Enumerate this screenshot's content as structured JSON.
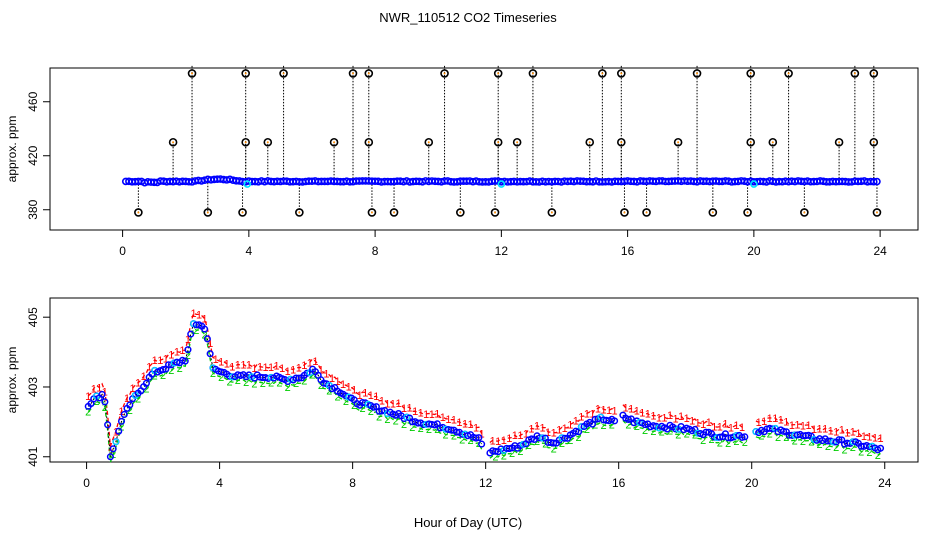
{
  "title": "NWR_110512  CO2 Timeseries",
  "xlabel": "Hour of Day (UTC)",
  "colors": {
    "main": "#0000ff",
    "outline": "#000000",
    "alt": "#00e5ff",
    "orange": "#ff8c00",
    "red": "#ff0000",
    "green": "#00cc00",
    "grid": "#000000"
  },
  "chart_data": [
    {
      "type": "scatter",
      "name": "top-panel",
      "ylabel": "approx. ppm",
      "xlim": [
        -2.3,
        25.2
      ],
      "ylim": [
        365,
        485
      ],
      "xticks": [
        0,
        4,
        8,
        12,
        16,
        20,
        24
      ],
      "yticks": [
        380,
        420,
        460
      ],
      "series": [
        {
          "name": "co2",
          "note": "near-continuous points ~400-402 ppm from 0.1 to 23.9 h",
          "start": 0.1,
          "end": 23.9,
          "step": 0.1,
          "baseline": 401,
          "bump": [
            [
              3.2,
              403
            ],
            [
              1.0,
              400.5
            ]
          ]
        },
        {
          "name": "spikes_high",
          "values": [
            [
              2.2,
              481
            ],
            [
              3.9,
              481
            ],
            [
              5.1,
              481
            ],
            [
              7.3,
              481
            ],
            [
              7.8,
              481
            ],
            [
              10.2,
              481
            ],
            [
              11.9,
              481
            ],
            [
              13.0,
              481
            ],
            [
              15.2,
              481
            ],
            [
              15.8,
              481
            ],
            [
              18.2,
              481
            ],
            [
              19.9,
              481
            ],
            [
              21.1,
              481
            ],
            [
              23.2,
              481
            ],
            [
              23.8,
              481
            ]
          ]
        },
        {
          "name": "spikes_mid",
          "values": [
            [
              1.6,
              430
            ],
            [
              3.9,
              430
            ],
            [
              4.6,
              430
            ],
            [
              6.7,
              430
            ],
            [
              7.8,
              430
            ],
            [
              9.7,
              430
            ],
            [
              11.9,
              430
            ],
            [
              12.5,
              430
            ],
            [
              14.8,
              430
            ],
            [
              15.8,
              430
            ],
            [
              17.6,
              430
            ],
            [
              19.9,
              430
            ],
            [
              20.6,
              430
            ],
            [
              22.7,
              430
            ],
            [
              23.8,
              430
            ]
          ]
        },
        {
          "name": "spikes_low",
          "values": [
            [
              0.5,
              378
            ],
            [
              2.7,
              378
            ],
            [
              3.8,
              378
            ],
            [
              5.6,
              378
            ],
            [
              7.9,
              378
            ],
            [
              8.6,
              378
            ],
            [
              10.7,
              378
            ],
            [
              11.8,
              378
            ],
            [
              13.6,
              378
            ],
            [
              15.9,
              378
            ],
            [
              16.6,
              378
            ],
            [
              18.7,
              378
            ],
            [
              19.8,
              378
            ],
            [
              21.6,
              378
            ],
            [
              23.9,
              378
            ]
          ]
        }
      ]
    },
    {
      "type": "scatter",
      "name": "bottom-panel",
      "ylabel": "approx. ppm",
      "xlim": [
        -1.1,
        25.0
      ],
      "ylim": [
        400.85,
        405.55
      ],
      "xticks": [
        0,
        4,
        8,
        12,
        16,
        20,
        24
      ],
      "yticks": [
        401,
        403,
        405
      ],
      "series": [
        {
          "name": "co2_mean",
          "anchors": [
            [
              0.05,
              402.5
            ],
            [
              0.3,
              402.7
            ],
            [
              0.5,
              402.8
            ],
            [
              0.6,
              402.4
            ],
            [
              0.7,
              401.0
            ],
            [
              0.85,
              401.3
            ],
            [
              1.0,
              401.9
            ],
            [
              1.3,
              402.5
            ],
            [
              1.6,
              402.9
            ],
            [
              2.0,
              403.4
            ],
            [
              2.5,
              403.6
            ],
            [
              3.0,
              403.8
            ],
            [
              3.2,
              404.8
            ],
            [
              3.4,
              404.8
            ],
            [
              3.6,
              404.6
            ],
            [
              3.8,
              403.5
            ],
            [
              4.5,
              403.3
            ],
            [
              5.5,
              403.3
            ],
            [
              6.0,
              403.2
            ],
            [
              6.5,
              403.3
            ],
            [
              6.8,
              403.5
            ],
            [
              7.2,
              403.1
            ],
            [
              7.6,
              402.9
            ],
            [
              8.0,
              402.6
            ],
            [
              9.0,
              402.3
            ],
            [
              10.0,
              402.0
            ],
            [
              11.0,
              401.8
            ],
            [
              11.8,
              401.5
            ],
            [
              12.0,
              401.1
            ],
            [
              12.5,
              401.2
            ],
            [
              13.0,
              401.3
            ],
            [
              13.6,
              401.6
            ],
            [
              14.0,
              401.4
            ],
            [
              14.5,
              401.6
            ],
            [
              15.0,
              401.9
            ],
            [
              15.5,
              402.1
            ],
            [
              15.9,
              402.0
            ],
            [
              16.0,
              402.2
            ],
            [
              16.5,
              402.0
            ],
            [
              17.0,
              401.9
            ],
            [
              18.0,
              401.8
            ],
            [
              19.0,
              401.6
            ],
            [
              19.8,
              401.6
            ],
            [
              20.0,
              401.7
            ],
            [
              20.5,
              401.8
            ],
            [
              21.0,
              401.7
            ],
            [
              22.0,
              401.5
            ],
            [
              23.0,
              401.4
            ],
            [
              23.9,
              401.2
            ]
          ],
          "gaps": [
            [
              11.95,
              12.05
            ],
            [
              15.95,
              16.05
            ],
            [
              19.85,
              20.05
            ]
          ]
        },
        {
          "name": "upper_1_red",
          "offset": 0.3
        },
        {
          "name": "lower_2_green",
          "offset": -0.15
        }
      ]
    }
  ]
}
